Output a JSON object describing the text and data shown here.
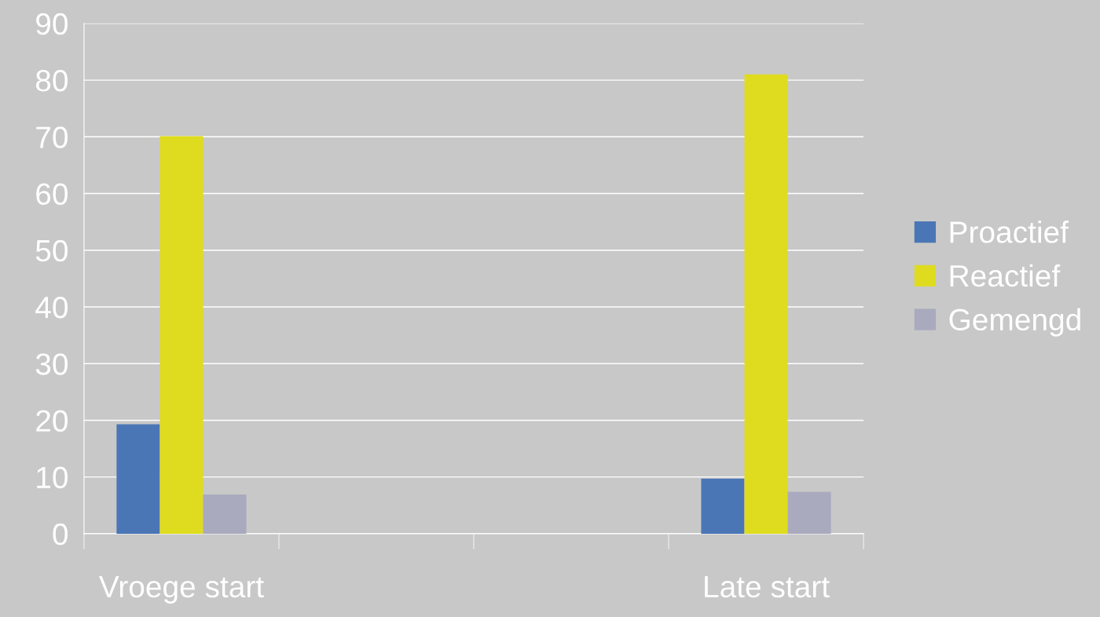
{
  "chart_data": {
    "type": "bar",
    "categories": [
      "Vroege start",
      null,
      null,
      "Late start"
    ],
    "series": [
      {
        "name": "Proactief",
        "color": "#4a76b5",
        "values": [
          19.3,
          null,
          null,
          9.7
        ]
      },
      {
        "name": "Reactief",
        "color": "#dfdc1f",
        "values": [
          70.1,
          null,
          null,
          81.0
        ]
      },
      {
        "name": "Gemengd",
        "color": "#a9aabe",
        "values": [
          6.9,
          null,
          null,
          7.4
        ]
      }
    ],
    "ylim": [
      0,
      90
    ],
    "yticks": [
      0,
      10,
      20,
      30,
      40,
      50,
      60,
      70,
      80,
      90
    ],
    "grid": "y",
    "legend": "right"
  }
}
